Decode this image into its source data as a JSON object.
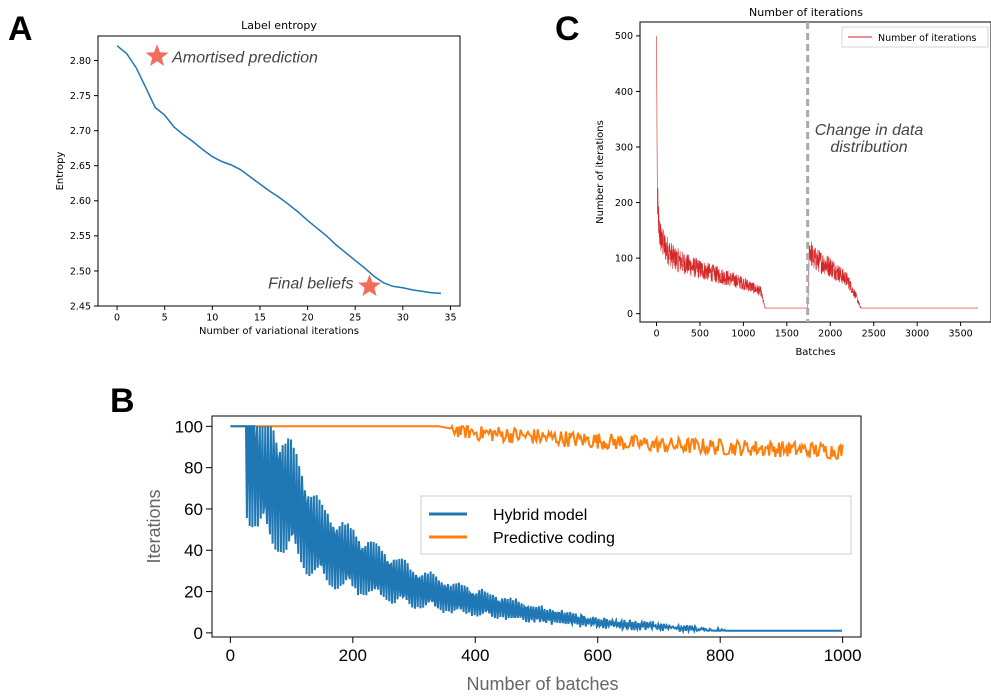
{
  "panels": {
    "a": "A",
    "b": "B",
    "c": "C"
  },
  "chart_data": [
    {
      "id": "A",
      "type": "line",
      "title": "Label entropy",
      "xlabel": "Number of variational iterations",
      "ylabel": "Entropy",
      "xlim": [
        -2,
        36
      ],
      "ylim": [
        2.45,
        2.835
      ],
      "xticks": [
        0,
        5,
        10,
        15,
        20,
        25,
        30,
        35
      ],
      "yticks": [
        2.45,
        2.5,
        2.55,
        2.6,
        2.65,
        2.7,
        2.75,
        2.8
      ],
      "yticklabels": [
        "2.45",
        "2.50",
        "2.55",
        "2.60",
        "2.65",
        "2.70",
        "2.75",
        "2.80"
      ],
      "color": "#1f77b4",
      "x": [
        0,
        1,
        2,
        3,
        4,
        5,
        6,
        7,
        8,
        9,
        10,
        11,
        12,
        13,
        14,
        15,
        16,
        17,
        18,
        19,
        20,
        21,
        22,
        23,
        24,
        25,
        26,
        27,
        28,
        29,
        30,
        31,
        32,
        33,
        34
      ],
      "y": [
        2.821,
        2.81,
        2.79,
        2.762,
        2.733,
        2.722,
        2.705,
        2.694,
        2.684,
        2.673,
        2.663,
        2.656,
        2.651,
        2.644,
        2.634,
        2.624,
        2.614,
        2.605,
        2.595,
        2.584,
        2.572,
        2.561,
        2.55,
        2.537,
        2.526,
        2.515,
        2.504,
        2.492,
        2.483,
        2.478,
        2.476,
        2.473,
        2.471,
        2.469,
        2.468
      ],
      "annotations": [
        {
          "text": "Amortised prediction",
          "x": 4.2,
          "y": 2.806,
          "marker": "star",
          "color": "#f36b5b"
        },
        {
          "text": "Final beliefs",
          "x": 26.5,
          "y": 2.478,
          "marker": "star",
          "color": "#f36b5b"
        }
      ]
    },
    {
      "id": "B",
      "type": "line",
      "xlabel": "Number of batches",
      "ylabel": "Iterations",
      "xlim": [
        -30,
        1030
      ],
      "ylim": [
        -2,
        105
      ],
      "xticks": [
        0,
        200,
        400,
        600,
        800,
        1000
      ],
      "yticks": [
        0,
        20,
        40,
        60,
        80,
        100
      ],
      "legend": "center-right",
      "series": [
        {
          "name": "Hybrid model",
          "color": "#1f77b4",
          "description_points": {
            "x": [
              0,
              25,
              60,
              100,
              125,
              150,
              200,
              250,
              300,
              350,
              400,
              450,
              500,
              550,
              600,
              650,
              700,
              750,
              800,
              820,
              1000
            ],
            "y": [
              100,
              100,
              75,
              64,
              52,
              43,
              35,
              28,
              22,
              18,
              15,
              12,
              9,
              7,
              5,
              4,
              3,
              2,
              1,
              1,
              1
            ]
          }
        },
        {
          "name": "Predictive coding",
          "color": "#ff7f0e",
          "description_points": {
            "x": [
              0,
              340,
              380,
              400,
              500,
              600,
              700,
              800,
              900,
              1000
            ],
            "y": [
              100,
              100,
              98,
              97,
              95,
              93,
              91,
              90,
              89,
              88
            ]
          }
        }
      ]
    },
    {
      "id": "C",
      "type": "line",
      "title": "Number of iterations",
      "xlabel": "Batches",
      "ylabel": "Number of iterations",
      "xlim": [
        -190,
        3850
      ],
      "ylim": [
        -15,
        525
      ],
      "xticks": [
        0,
        500,
        1000,
        1500,
        2000,
        2500,
        3000,
        3500
      ],
      "yticks": [
        0,
        100,
        200,
        300,
        400,
        500
      ],
      "legend": "top-right",
      "series": [
        {
          "name": "Number of iterations",
          "color": "#d62728",
          "description_points": {
            "x": [
              0,
              10,
              30,
              60,
              100,
              200,
              400,
              600,
              800,
              1000,
              1200,
              1250,
              1740,
              1760,
              1800,
              2000,
              2200,
              2300,
              2350,
              3700
            ],
            "y": [
              500,
              200,
              150,
              130,
              120,
              100,
              85,
              75,
              65,
              55,
              40,
              10,
              10,
              120,
              100,
              85,
              60,
              30,
              10,
              10
            ]
          }
        }
      ],
      "vline": {
        "x": 1740,
        "style": "dashed",
        "color": "#aaaaaa"
      },
      "annotation": {
        "line1": "Change in data",
        "line2": "distribution"
      }
    }
  ]
}
